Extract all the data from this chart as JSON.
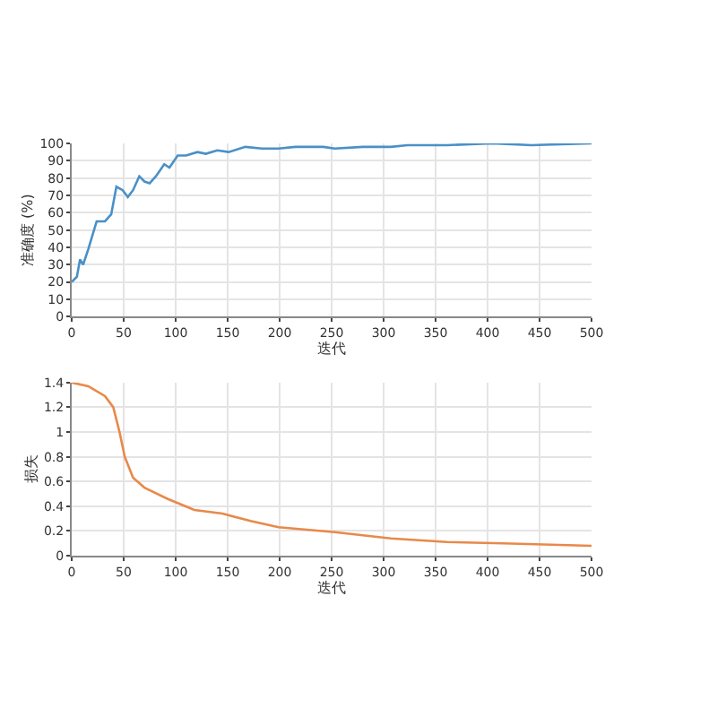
{
  "chart_data": [
    {
      "type": "line",
      "xlabel": "迭代",
      "ylabel": "准确度 (%)",
      "xlim": [
        0,
        500
      ],
      "xticks": [
        0,
        50,
        100,
        150,
        200,
        250,
        300,
        350,
        400,
        450,
        500
      ],
      "ylim": [
        0,
        100
      ],
      "yticks": [
        0,
        10,
        20,
        30,
        40,
        50,
        60,
        70,
        80,
        90,
        100
      ],
      "grid": true,
      "marker": "none",
      "line_style": "solid",
      "series": [
        {
          "color": "#4a90c8",
          "x": [
            0,
            5,
            8,
            11,
            16,
            24,
            32,
            38,
            43,
            49,
            54,
            59,
            65,
            70,
            75,
            81,
            89,
            94,
            102,
            110,
            121,
            129,
            140,
            151,
            167,
            183,
            199,
            215,
            242,
            253,
            280,
            307,
            323,
            361,
            404,
            442,
            500
          ],
          "values": [
            20,
            23,
            33,
            30,
            39,
            55,
            55,
            59,
            75,
            73,
            69,
            73,
            81,
            78,
            77,
            81,
            88,
            86,
            93,
            93,
            95,
            94,
            96,
            95,
            98,
            97,
            97,
            98,
            98,
            97,
            98,
            98,
            99,
            99,
            100,
            99,
            100
          ]
        }
      ]
    },
    {
      "type": "line",
      "xlabel": "迭代",
      "ylabel": "损失",
      "xlim": [
        0,
        500
      ],
      "xticks": [
        0,
        50,
        100,
        150,
        200,
        250,
        300,
        350,
        400,
        450,
        500
      ],
      "ylim": [
        0,
        1.4
      ],
      "yticks": [
        0,
        0.2,
        0.4,
        0.6,
        0.8,
        1,
        1.2,
        1.4
      ],
      "grid": true,
      "marker": "none",
      "line_style": "solid",
      "series": [
        {
          "color": "#e8894a",
          "x": [
            0,
            16,
            32,
            40,
            46,
            51,
            59,
            70,
            92,
            118,
            145,
            172,
            199,
            253,
            307,
            361,
            415,
            500
          ],
          "values": [
            1.4,
            1.37,
            1.29,
            1.2,
            1.0,
            0.8,
            0.63,
            0.55,
            0.46,
            0.37,
            0.34,
            0.28,
            0.23,
            0.19,
            0.14,
            0.11,
            0.1,
            0.08
          ]
        }
      ]
    }
  ]
}
